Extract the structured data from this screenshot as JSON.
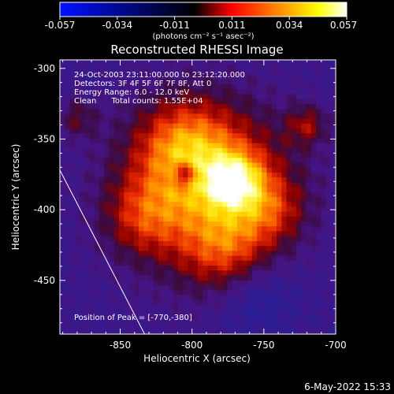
{
  "colorbar": {
    "tick_labels": [
      "-0.057",
      "-0.034",
      "-0.011",
      "0.011",
      "0.034",
      "0.057"
    ],
    "units_label": "(photons cm⁻² s⁻¹ asec⁻²)",
    "colors": [
      "#0010ff",
      "#000000",
      "#ff0000",
      "#ff8000",
      "#ffff00",
      "#ffffff"
    ]
  },
  "title": "Reconstructed RHESSI Image",
  "info": {
    "time_range": "24-Oct-2003 23:11:00.000 to 23:12:20.000",
    "detectors": "Detectors: 3F 4F 5F 6F 7F 8F, Att 0",
    "energy_range": "Energy Range: 6.0 - 12.0 keV",
    "method_counts": "Clean      Total counts: 1.55E+04"
  },
  "peak_label": "Position of Peak = [-770,-380]",
  "chart_data": {
    "type": "heatmap",
    "title": "Reconstructed RHESSI Image",
    "xlabel": "Heliocentric X (arcsec)",
    "ylabel": "Heliocentric Y (arcsec)",
    "xlim": [
      -892,
      -700
    ],
    "ylim": [
      -488,
      -294
    ],
    "x_ticks": [
      -850,
      -800,
      -750,
      -700
    ],
    "y_ticks": [
      -300,
      -350,
      -400,
      -450
    ],
    "peak": [
      -770,
      -380
    ],
    "value_range": [
      -0.057,
      0.057
    ],
    "limb_line": [
      [
        -892,
        -372
      ],
      [
        -833,
        -488
      ]
    ]
  },
  "timestamp": "6-May-2022 15:33"
}
